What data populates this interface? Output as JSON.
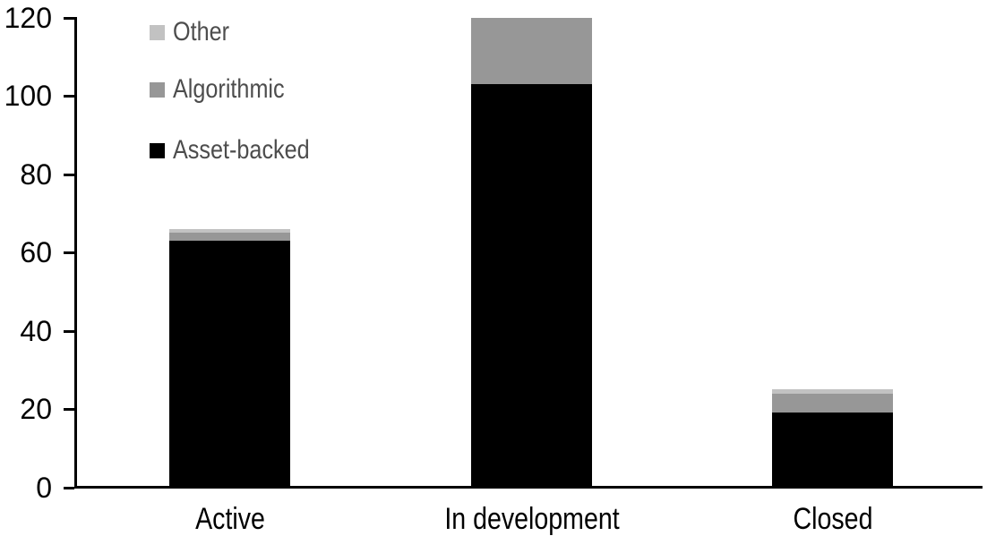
{
  "chart_data": {
    "type": "bar",
    "stacked": true,
    "title": "",
    "xlabel": "",
    "ylabel": "",
    "categories": [
      "Active",
      "In development",
      "Closed"
    ],
    "series": [
      {
        "name": "Asset-backed",
        "color": "#000000",
        "values": [
          63,
          103,
          19
        ]
      },
      {
        "name": "Algorithmic",
        "color": "#979797",
        "values": [
          2,
          17,
          5
        ]
      },
      {
        "name": "Other",
        "color": "#c2c2c2",
        "values": [
          1,
          0,
          1
        ]
      }
    ],
    "stacked_totals": [
      66,
      120,
      25
    ],
    "ylim": [
      0,
      120
    ],
    "yticks": [
      0,
      20,
      40,
      60,
      80,
      100,
      120
    ],
    "grid": false,
    "legend": {
      "position": "top-left-inside",
      "entries": [
        "Other",
        "Algorithmic",
        "Asset-backed"
      ]
    }
  },
  "styles": {
    "background": "#ffffff",
    "axis_color": "#000000",
    "tick_label_color": "#000000",
    "category_label_color": "#000000",
    "legend_text_color": "#4d4d4d"
  }
}
